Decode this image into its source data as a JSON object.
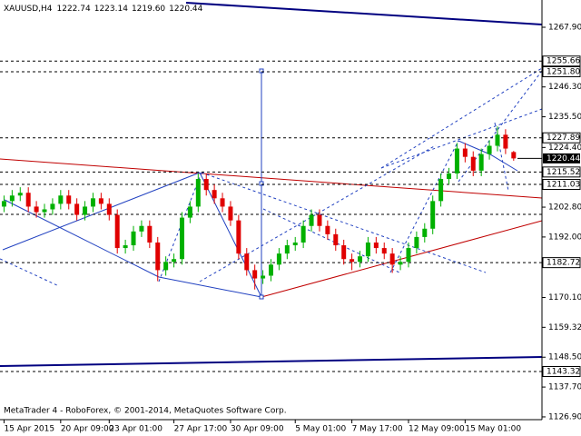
{
  "chart_data": {
    "type": "candlestick",
    "symbol": "XAUUSD,H4",
    "ohlc_labels": [
      "1222.74",
      "1223.14",
      "1219.60",
      "1220.44"
    ],
    "footer": "MetaTrader 4 - RoboForex, © 2001-2014, MetaQuotes Software Corp.",
    "open": [
      1203,
      1205,
      1207,
      1208,
      1203,
      1201,
      1202,
      1204,
      1207,
      1204,
      1200,
      1203,
      1206,
      1204,
      1200,
      1188,
      1189,
      1194,
      1196,
      1190,
      1180,
      1183,
      1184,
      1199,
      1203,
      1213,
      1209,
      1206,
      1203,
      1198,
      1186,
      1180,
      1177,
      1178,
      1182,
      1186,
      1189,
      1190,
      1196,
      1200,
      1196,
      1193,
      1189,
      1184,
      1183,
      1185,
      1190,
      1188,
      1186,
      1182,
      1183,
      1188,
      1192,
      1195,
      1205,
      1213,
      1215,
      1224,
      1221,
      1216,
      1222,
      1225,
      1229,
      1222.74
    ],
    "high": [
      1207,
      1209,
      1210,
      1210,
      1205,
      1204,
      1206,
      1209,
      1209,
      1206,
      1205,
      1208,
      1208,
      1206,
      1202,
      1191,
      1196,
      1198,
      1198,
      1192,
      1185,
      1186,
      1201,
      1205,
      1215,
      1215,
      1211,
      1208,
      1205,
      1200,
      1188,
      1182,
      1180,
      1184,
      1188,
      1191,
      1192,
      1198,
      1202,
      1202,
      1198,
      1195,
      1191,
      1186,
      1187,
      1192,
      1192,
      1190,
      1188,
      1185,
      1190,
      1194,
      1197,
      1207,
      1215,
      1217,
      1226,
      1226,
      1223,
      1224,
      1227,
      1232,
      1231,
      1223.14
    ],
    "low": [
      1201,
      1203,
      1205,
      1201,
      1199,
      1199,
      1200,
      1202,
      1202,
      1198,
      1198,
      1201,
      1202,
      1198,
      1186,
      1186,
      1187,
      1192,
      1188,
      1176,
      1178,
      1181,
      1182,
      1197,
      1201,
      1207,
      1204,
      1201,
      1196,
      1184,
      1178,
      1173,
      1175,
      1176,
      1180,
      1184,
      1187,
      1188,
      1194,
      1194,
      1191,
      1187,
      1182,
      1180,
      1181,
      1183,
      1186,
      1184,
      1179,
      1180,
      1181,
      1186,
      1190,
      1193,
      1203,
      1211,
      1213,
      1219,
      1214,
      1214,
      1220,
      1223,
      1222,
      1219.6
    ],
    "close": [
      1205,
      1207,
      1208,
      1203,
      1201,
      1202,
      1204,
      1207,
      1204,
      1200,
      1203,
      1206,
      1204,
      1200,
      1188,
      1189,
      1194,
      1196,
      1190,
      1180,
      1183,
      1184,
      1199,
      1203,
      1213,
      1209,
      1206,
      1203,
      1198,
      1186,
      1180,
      1177,
      1178,
      1182,
      1186,
      1189,
      1190,
      1196,
      1200,
      1196,
      1193,
      1189,
      1184,
      1183,
      1185,
      1190,
      1188,
      1186,
      1182,
      1183,
      1188,
      1192,
      1195,
      1205,
      1213,
      1215,
      1224,
      1221,
      1216,
      1222,
      1225,
      1229,
      1224,
      1220.44
    ],
    "up_color": "#00b000",
    "down_color": "#e00000",
    "xlim": [
      -0.5,
      66.5
    ],
    "xticks": [
      {
        "value": 0,
        "label": "15 Apr 2015"
      },
      {
        "value": 7,
        "label": "20 Apr 09:00"
      },
      {
        "value": 13,
        "label": "23 Apr 01:00"
      },
      {
        "value": 21,
        "label": "27 Apr 17:00"
      },
      {
        "value": 28,
        "label": "30 Apr 09:00"
      },
      {
        "value": 36,
        "label": "5 May 01:00"
      },
      {
        "value": 43,
        "label": "7 May 17:00"
      },
      {
        "value": 50,
        "label": "12 May 09:00"
      },
      {
        "value": 57,
        "label": "15 May 01:00"
      }
    ],
    "ylim": [
      1125.9,
      1277.76
    ],
    "yticks": [
      {
        "value": 1267.9,
        "label": "1267.90"
      },
      {
        "value": 1246.3,
        "label": "1246.30"
      },
      {
        "value": 1235.5,
        "label": "1235.50"
      },
      {
        "value": 1224.4,
        "label": "1224.40"
      },
      {
        "value": 1202.8,
        "label": "1202.80"
      },
      {
        "value": 1192,
        "label": "1192.00"
      },
      {
        "value": 1170.1,
        "label": "1170.10"
      },
      1159.32,
      {
        "value": 1148.5,
        "label": "1148.50"
      },
      {
        "value": 1137.7,
        "label": "1137.70"
      },
      {
        "value": 1126.9,
        "label": "1126.90"
      }
    ],
    "price_levels": [
      1255.66,
      {
        "value": 1251.8,
        "label": "1251.80"
      },
      1227.89,
      1215.52,
      1211.03,
      1182.72,
      1143.32
    ],
    "last_price": 1220.44
  }
}
